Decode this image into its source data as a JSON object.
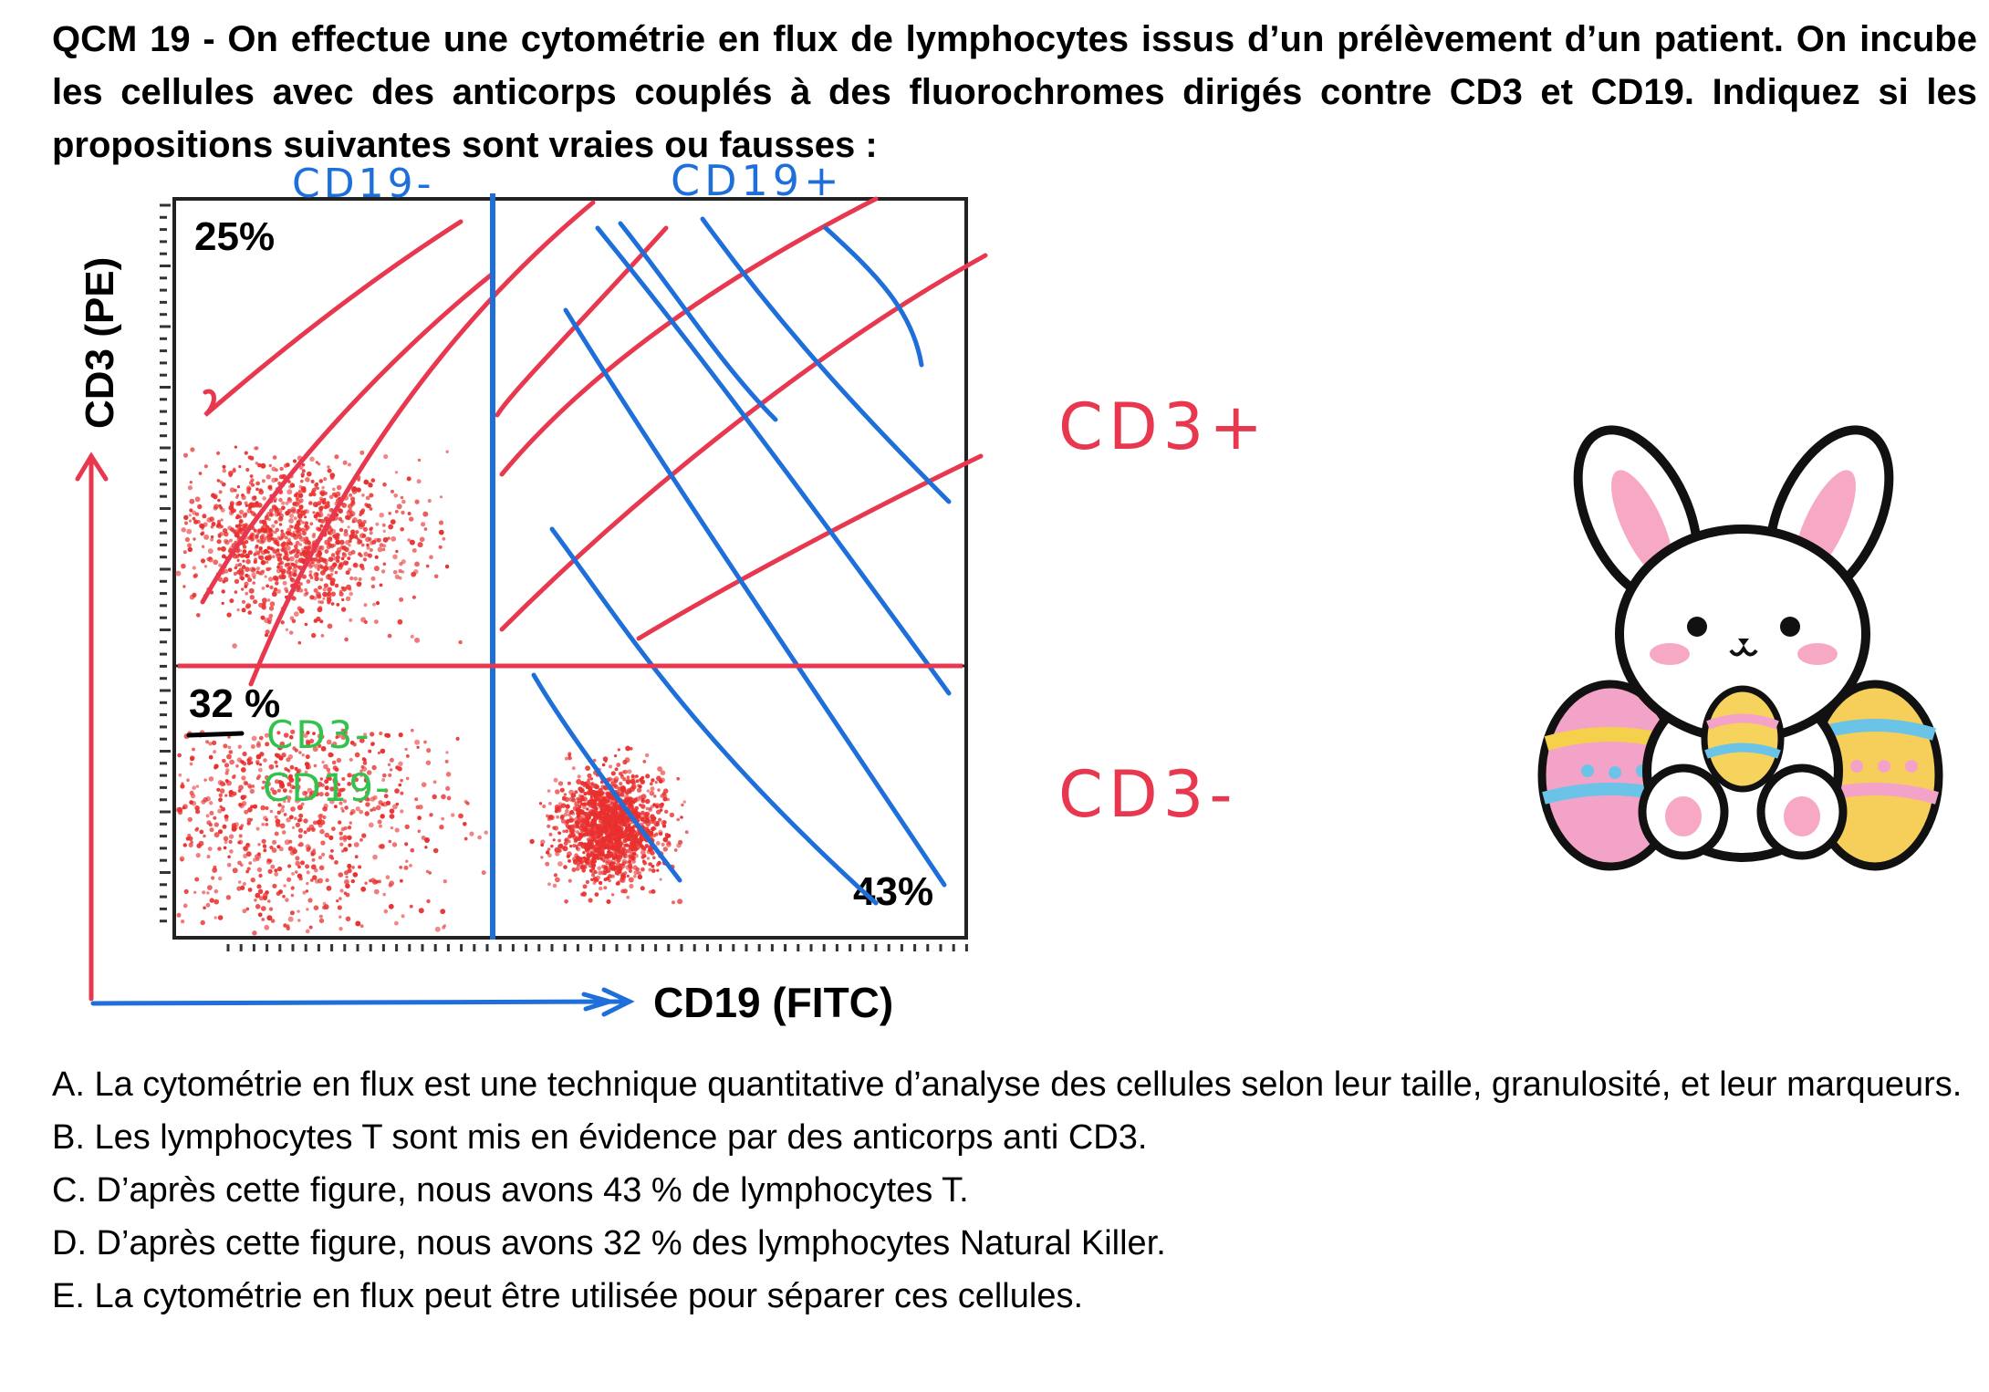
{
  "question": {
    "text": "QCM 19 - On effectue une cytométrie en flux de lymphocytes issus d’un prélèvement d’un patient. On incube les cellules avec des anticorps couplés à des fluorochromes dirigés contre CD3 et CD19. Indiquez si les propositions suivantes sont vraies ou fausses :"
  },
  "figure": {
    "y_axis_label": "CD3 (PE)",
    "x_axis_label": "CD19 (FITC)",
    "quadrant_top_left": "25%",
    "quadrant_bottom_left": "32 %",
    "quadrant_bottom_right": "43%",
    "annotations": {
      "cd19_minus": "CD19-",
      "cd19_plus": "CD19+",
      "cd3_plus": "CD3+",
      "cd3_minus": "CD3-",
      "green_cd3_minus": "CD3-",
      "green_cd19_minus": "CD19-"
    },
    "colors": {
      "dots": "#e8302f",
      "red_annotation": "#e8384f",
      "blue_annotation": "#1e6fd9",
      "green_annotation": "#33c24d"
    },
    "decoration_icon": "easter-bunny-with-eggs-icon"
  },
  "options": [
    {
      "text": "A. La cytométrie en flux est une technique quantitative d’analyse des cellules selon leur taille, granulosité, et leur marqueurs."
    },
    {
      "text": "B. Les lymphocytes T sont mis en évidence par des anticorps anti CD3."
    },
    {
      "text": "C. D’après cette figure, nous avons 43 % de lymphocytes T."
    },
    {
      "text": "D. D’après cette figure, nous avons 32 % des lymphocytes Natural Killer."
    },
    {
      "text": "E. La cytométrie en flux peut être utilisée pour séparer ces cellules."
    }
  ]
}
